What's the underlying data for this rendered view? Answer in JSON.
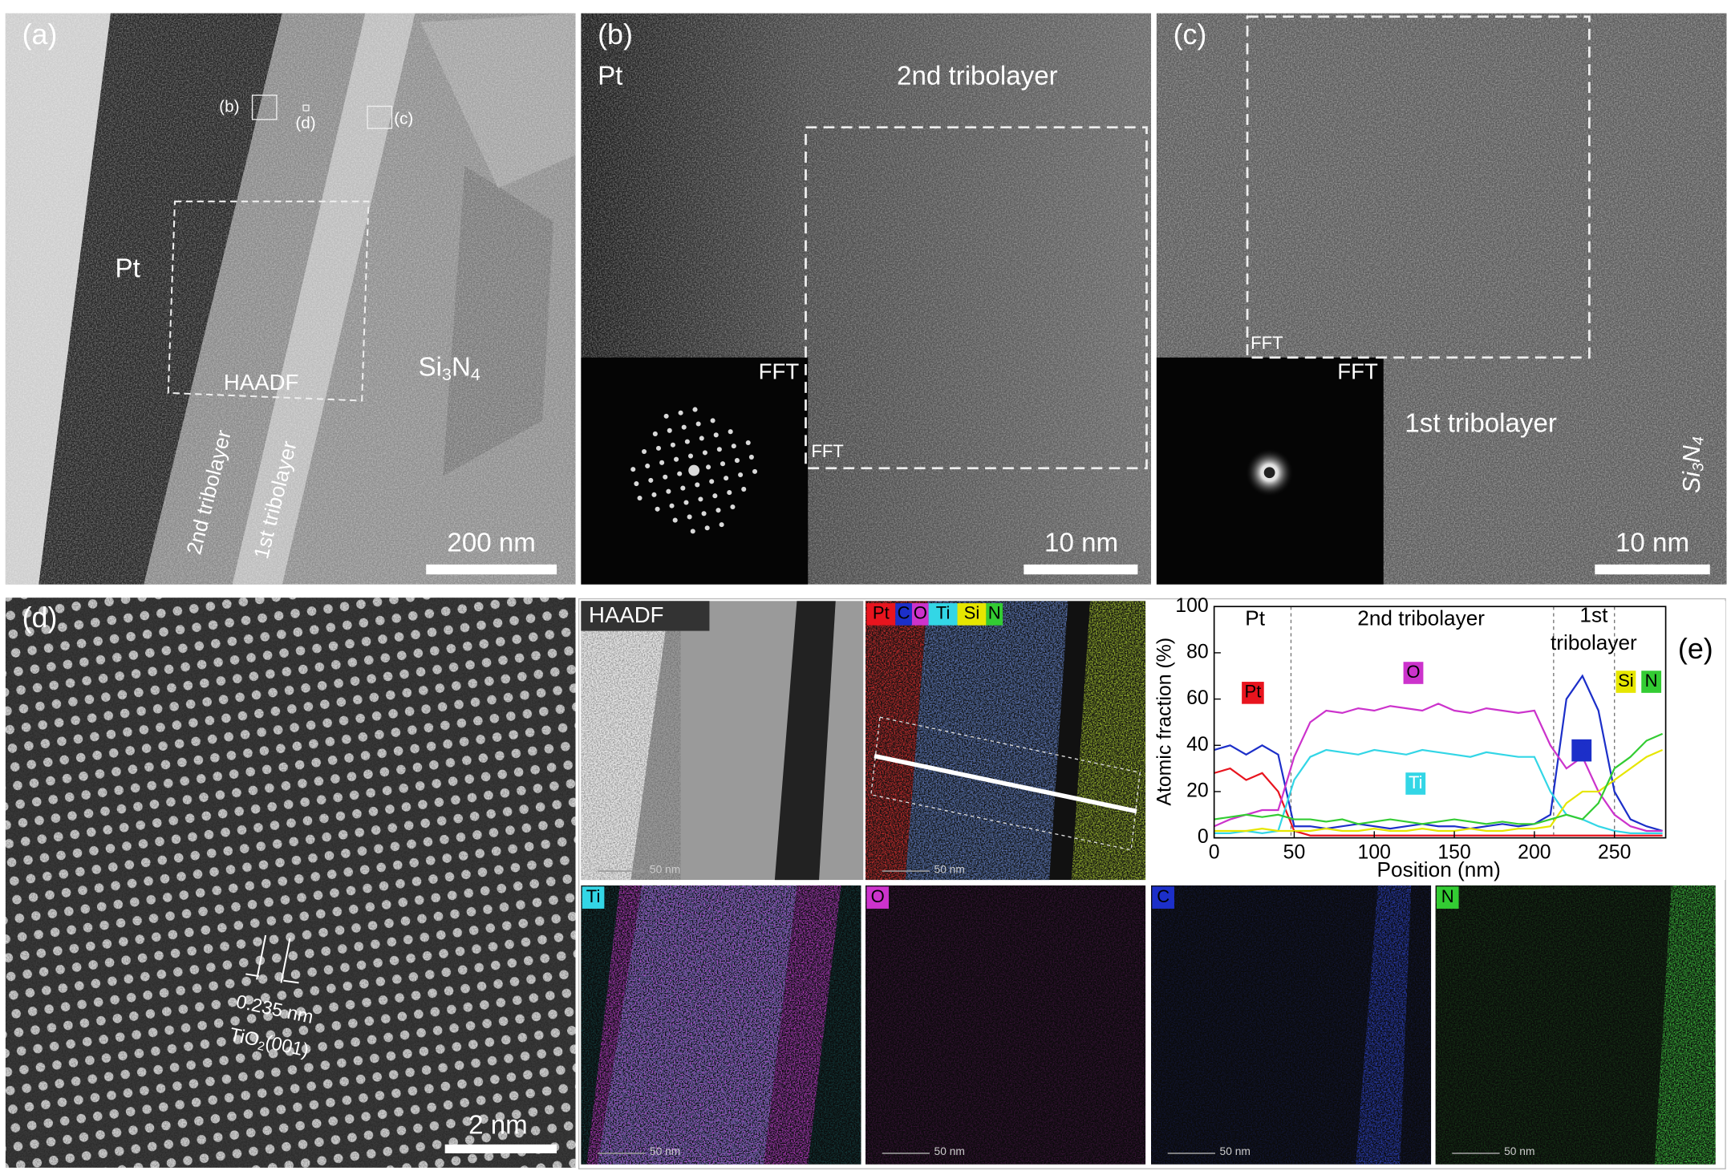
{
  "panels": {
    "a": {
      "label": "(a)",
      "pt": "Pt",
      "markers": [
        "(b)",
        "(d)",
        "(c)"
      ],
      "haadf": "HAADF",
      "si3n4": [
        "Si",
        "3",
        "N",
        "4"
      ],
      "layer2": "2nd tribolayer",
      "layer1": "1st  tribolayer",
      "scale": "200 nm"
    },
    "b": {
      "label": "(b)",
      "pt": "Pt",
      "layer": "2nd tribolayer",
      "fft_inset": "FFT",
      "fft_box": "FFT",
      "scale": "10 nm"
    },
    "c": {
      "label": "(c)",
      "fft_box": "FFT",
      "fft_inset": "FFT",
      "layer": "1st tribolayer",
      "si3n4": [
        "Si",
        "3",
        "N",
        "4"
      ],
      "scale": "10 nm"
    },
    "d": {
      "label": "(d)",
      "spacing": "0.235 nm",
      "plane": [
        "TiO",
        "2",
        "(001)"
      ],
      "scale": "2 nm"
    },
    "maps": {
      "haadf": "HAADF",
      "scale": "50 nm"
    }
  },
  "chart_data": {
    "type": "line",
    "panel_label": "(e)",
    "xlabel": "Position (nm)",
    "ylabel": "Atomic fraction (%)",
    "regions": [
      "Pt",
      "2nd tribolayer",
      "1st",
      "tribolayer"
    ],
    "dividers": [
      48,
      212,
      250
    ],
    "x": [
      0,
      10,
      20,
      30,
      40,
      50,
      60,
      70,
      80,
      90,
      100,
      110,
      120,
      130,
      140,
      150,
      160,
      170,
      180,
      190,
      200,
      210,
      220,
      230,
      240,
      250,
      260,
      270,
      280
    ],
    "series": [
      {
        "name": "Pt",
        "color": "#e8141e",
        "values": [
          28,
          30,
          25,
          28,
          20,
          3,
          1,
          1,
          1,
          1,
          1,
          1,
          1,
          1,
          1,
          1,
          1,
          1,
          1,
          1,
          1,
          1,
          1,
          1,
          1,
          1,
          1,
          1,
          1
        ]
      },
      {
        "name": "C",
        "color": "#1c2fc9",
        "values": [
          38,
          40,
          36,
          40,
          36,
          5,
          5,
          4,
          5,
          6,
          5,
          4,
          5,
          6,
          5,
          5,
          4,
          5,
          6,
          5,
          6,
          10,
          60,
          70,
          55,
          20,
          8,
          5,
          3
        ]
      },
      {
        "name": "O",
        "color": "#cc33cc",
        "values": [
          5,
          8,
          10,
          12,
          12,
          35,
          50,
          55,
          54,
          56,
          55,
          57,
          56,
          55,
          58,
          55,
          54,
          56,
          55,
          54,
          55,
          40,
          30,
          35,
          20,
          10,
          5,
          3,
          3
        ]
      },
      {
        "name": "Ti",
        "color": "#33d6e6",
        "values": [
          2,
          2,
          3,
          2,
          3,
          25,
          35,
          38,
          37,
          36,
          38,
          37,
          36,
          38,
          37,
          36,
          35,
          37,
          36,
          35,
          35,
          20,
          10,
          8,
          5,
          3,
          2,
          2,
          2
        ]
      },
      {
        "name": "Si",
        "color": "#e6e600",
        "values": [
          3,
          3,
          3,
          4,
          3,
          3,
          3,
          4,
          3,
          3,
          4,
          3,
          3,
          4,
          3,
          3,
          4,
          3,
          3,
          4,
          4,
          5,
          15,
          20,
          20,
          25,
          30,
          35,
          38
        ]
      },
      {
        "name": "N",
        "color": "#33cc33",
        "values": [
          8,
          9,
          10,
          9,
          10,
          8,
          8,
          7,
          8,
          6,
          7,
          8,
          7,
          6,
          7,
          8,
          7,
          6,
          7,
          6,
          6,
          8,
          10,
          8,
          15,
          30,
          35,
          42,
          45
        ]
      }
    ],
    "xlim": [
      0,
      282
    ],
    "ylim": [
      0,
      100
    ],
    "xticks": [
      0,
      50,
      100,
      150,
      200,
      250
    ],
    "yticks": [
      0,
      20,
      40,
      60,
      80,
      100
    ]
  }
}
